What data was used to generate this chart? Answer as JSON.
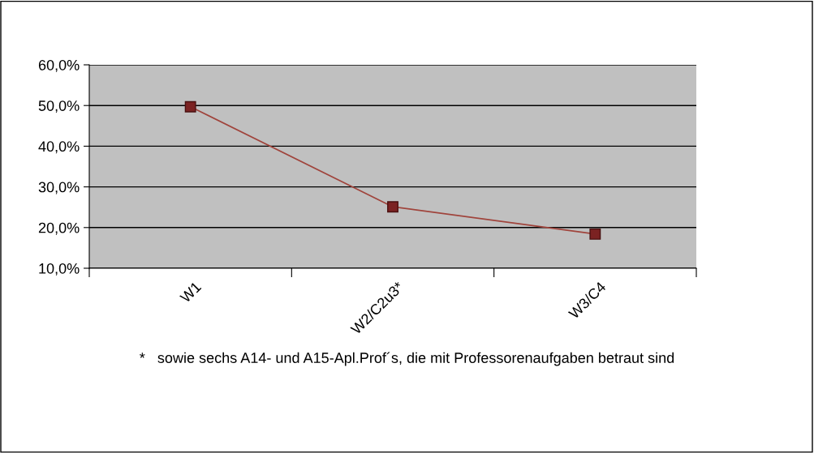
{
  "chart_data": {
    "type": "line",
    "categories": [
      "W1",
      "W2/C2u3*",
      "W3/C4"
    ],
    "series": [
      {
        "color": "#a0443c",
        "values": [
          49.7,
          25.1,
          18.4
        ]
      }
    ],
    "ylim": [
      10,
      60
    ],
    "yticks": [
      {
        "value": 10,
        "label": "10,0%"
      },
      {
        "value": 20,
        "label": "20,0%"
      },
      {
        "value": 30,
        "label": "30,0%"
      },
      {
        "value": 40,
        "label": "40,0%"
      },
      {
        "value": 50,
        "label": "50,0%"
      },
      {
        "value": 60,
        "label": "60,0%"
      }
    ],
    "grid": "y",
    "legend": false,
    "marker": "square",
    "line_style": "solid",
    "annotations": [
      "*   sowie sechs A14- und A15-Apl.Prof´s, die mit Professorenaufgaben betraut sind"
    ]
  }
}
